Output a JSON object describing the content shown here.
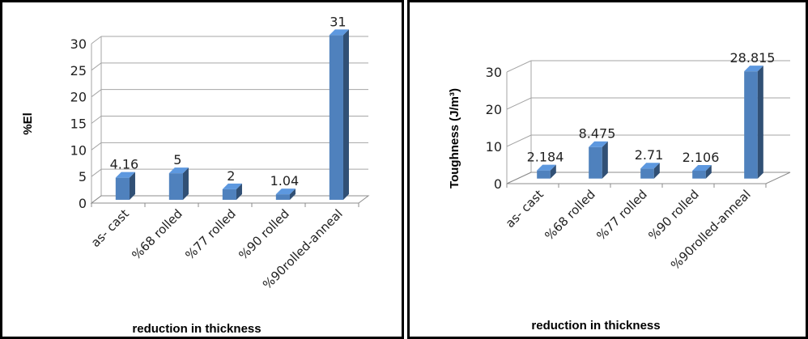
{
  "chart_data": [
    {
      "type": "bar",
      "style": "3d-column",
      "categories": [
        "as- cast",
        "%68 rolled",
        "%77 rolled",
        "%90 rolled",
        "%90rolled-anneal"
      ],
      "values": [
        4.16,
        5,
        2,
        1.04,
        31
      ],
      "data_labels": [
        "4.16",
        "5",
        "2",
        "1.04",
        "31"
      ],
      "xlabel": "reduction in thickness",
      "ylabel": "%El",
      "ylim": [
        0,
        30
      ],
      "yticks": [
        0,
        5,
        10,
        15,
        20,
        25,
        30
      ],
      "grid": true,
      "bar_color": "#4f81bd"
    },
    {
      "type": "bar",
      "style": "3d-column",
      "categories": [
        "as- cast",
        "%68 rolled",
        "%77 rolled",
        "%90 rolled",
        "%90rolled-anneal"
      ],
      "values": [
        2.184,
        8.475,
        2.71,
        2.106,
        28.815
      ],
      "data_labels": [
        "2.184",
        "8.475",
        "2.71",
        "2.106",
        "28.815"
      ],
      "xlabel": "reduction in thickness",
      "ylabel": "Toughness (J/m³)",
      "ylim": [
        0,
        30
      ],
      "yticks": [
        0,
        10,
        20,
        30
      ],
      "grid": true,
      "bar_color": "#4f81bd"
    }
  ]
}
